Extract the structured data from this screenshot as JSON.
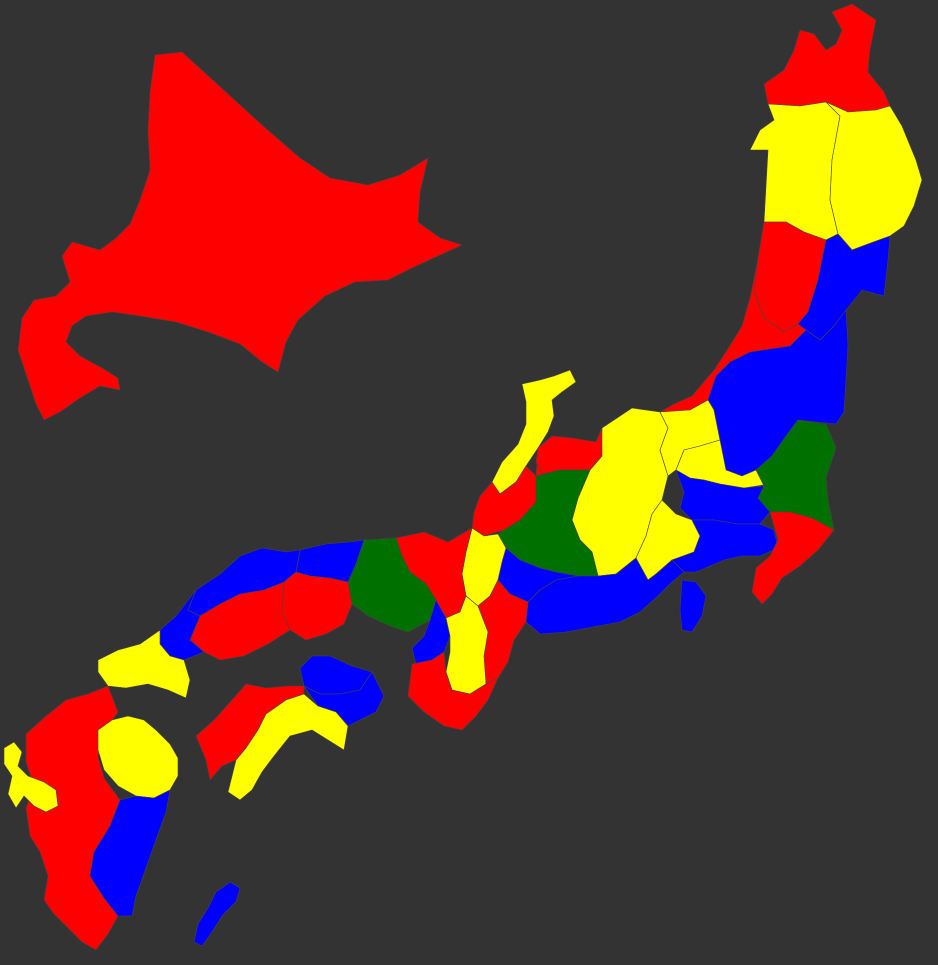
{
  "map": {
    "background_color": "#333333",
    "border_color": "#444444",
    "palette": {
      "red": "#ff0000",
      "yellow": "#ffff00",
      "blue": "#0000ff",
      "green": "#007000"
    },
    "regions": [
      {
        "name": "hokkaido",
        "color": "red"
      },
      {
        "name": "aomori",
        "color": "red"
      },
      {
        "name": "akita",
        "color": "yellow"
      },
      {
        "name": "iwate",
        "color": "yellow"
      },
      {
        "name": "yamagata",
        "color": "red"
      },
      {
        "name": "miyagi",
        "color": "blue"
      },
      {
        "name": "niigata",
        "color": "red"
      },
      {
        "name": "fukushima",
        "color": "blue"
      },
      {
        "name": "ishikawa",
        "color": "yellow"
      },
      {
        "name": "toyama",
        "color": "red"
      },
      {
        "name": "nagano",
        "color": "yellow"
      },
      {
        "name": "gunma",
        "color": "yellow"
      },
      {
        "name": "tochigi",
        "color": "yellow"
      },
      {
        "name": "ibaraki",
        "color": "green"
      },
      {
        "name": "saitama",
        "color": "blue"
      },
      {
        "name": "yamanashi",
        "color": "yellow"
      },
      {
        "name": "tokyo-kanagawa",
        "color": "blue"
      },
      {
        "name": "chiba",
        "color": "red"
      },
      {
        "name": "fukui",
        "color": "red"
      },
      {
        "name": "gifu",
        "color": "green"
      },
      {
        "name": "shizuoka",
        "color": "blue"
      },
      {
        "name": "izu-islands",
        "color": "blue"
      },
      {
        "name": "aichi",
        "color": "blue"
      },
      {
        "name": "shiga",
        "color": "yellow"
      },
      {
        "name": "kyoto",
        "color": "red"
      },
      {
        "name": "mie",
        "color": "red"
      },
      {
        "name": "hyogo",
        "color": "green"
      },
      {
        "name": "osaka",
        "color": "blue"
      },
      {
        "name": "nara",
        "color": "yellow"
      },
      {
        "name": "wakayama",
        "color": "red"
      },
      {
        "name": "tottori",
        "color": "blue"
      },
      {
        "name": "shimane",
        "color": "blue"
      },
      {
        "name": "okayama",
        "color": "red"
      },
      {
        "name": "hiroshima",
        "color": "red"
      },
      {
        "name": "yamaguchi",
        "color": "blue"
      },
      {
        "name": "kagawa",
        "color": "blue"
      },
      {
        "name": "tokushima",
        "color": "blue"
      },
      {
        "name": "ehime",
        "color": "red"
      },
      {
        "name": "kochi",
        "color": "yellow"
      },
      {
        "name": "fukuoka",
        "color": "yellow"
      },
      {
        "name": "saga-nagasaki-kumamoto-kagoshima",
        "color": "red"
      },
      {
        "name": "oita",
        "color": "yellow"
      },
      {
        "name": "miyazaki",
        "color": "blue"
      },
      {
        "name": "nagasaki-islands",
        "color": "yellow"
      },
      {
        "name": "amami-islands",
        "color": "blue"
      }
    ]
  }
}
